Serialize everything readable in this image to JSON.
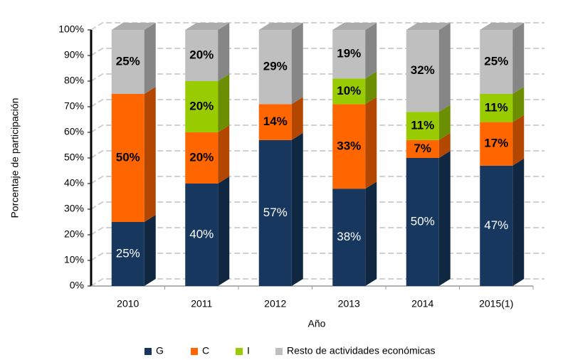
{
  "chart_data": {
    "type": "stacked_bar_3d",
    "categories": [
      "2010",
      "2011",
      "2012",
      "2013",
      "2014",
      "2015(1)"
    ],
    "series": [
      {
        "name": "G",
        "color": "#17375e",
        "values": [
          25,
          40,
          57,
          38,
          50,
          47
        ],
        "value_labels": [
          "25%",
          "40%",
          "57%",
          "38%",
          "50%",
          "47%"
        ]
      },
      {
        "name": "C",
        "color": "#ff6600",
        "values": [
          50,
          20,
          14,
          33,
          7,
          17
        ],
        "value_labels": [
          "50%",
          "20%",
          "14%",
          "33%",
          "7%",
          "17%"
        ]
      },
      {
        "name": "I",
        "color": "#99cc00",
        "values": [
          null,
          20,
          null,
          10,
          11,
          11
        ],
        "value_labels": [
          null,
          "20%",
          null,
          "10%",
          "11%",
          "11%"
        ]
      },
      {
        "name": "Resto de actividades económicas",
        "color": "#bfbfbf",
        "values": [
          25,
          20,
          29,
          19,
          32,
          25
        ],
        "value_labels": [
          "25%",
          "20%",
          "29%",
          "19%",
          "32%",
          "25%"
        ]
      }
    ],
    "x_label": "Año",
    "y_label": "Porcentaje de participación",
    "ylim": [
      0,
      100
    ],
    "yticks": [
      {
        "value": 0,
        "label": "0%"
      },
      {
        "value": 10,
        "label": "10%"
      },
      {
        "value": 20,
        "label": "20%"
      },
      {
        "value": 30,
        "label": "30%"
      },
      {
        "value": 40,
        "label": "40%"
      },
      {
        "value": 50,
        "label": "50%"
      },
      {
        "value": 60,
        "label": "60%"
      },
      {
        "value": 70,
        "label": "70%"
      },
      {
        "value": 80,
        "label": "80%"
      },
      {
        "value": 90,
        "label": "90%"
      },
      {
        "value": 100,
        "label": "100%"
      }
    ],
    "grid": true,
    "legend": "bottom"
  }
}
